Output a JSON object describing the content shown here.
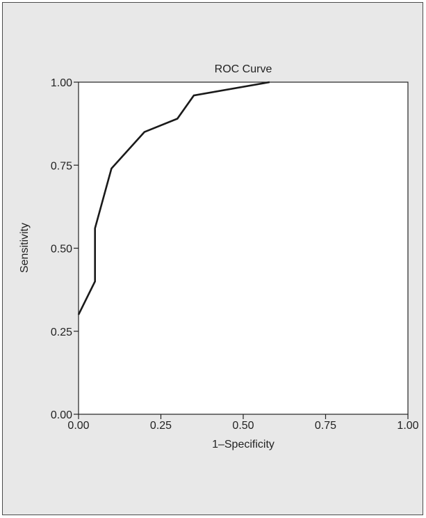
{
  "chart_data": {
    "type": "line",
    "title": "ROC Curve",
    "xlabel": "1–Specificity",
    "ylabel": "Sensitivity",
    "xlim": [
      0,
      1
    ],
    "ylim": [
      0,
      1
    ],
    "x_ticks": [
      "0.00",
      "0.25",
      "0.50",
      "0.75",
      "1.00"
    ],
    "y_ticks": [
      "0.00",
      "0.25",
      "0.50",
      "0.75",
      "1.00"
    ],
    "grid": false,
    "series": [
      {
        "x": [
          0.0,
          0.05,
          0.05,
          0.1,
          0.2,
          0.3,
          0.35,
          0.58
        ],
        "y": [
          0.3,
          0.4,
          0.56,
          0.74,
          0.85,
          0.89,
          0.96,
          1.0
        ]
      }
    ],
    "colors": {
      "line": "#1a1a1a",
      "axis": "#222222",
      "background": "#e8e8e8"
    }
  }
}
